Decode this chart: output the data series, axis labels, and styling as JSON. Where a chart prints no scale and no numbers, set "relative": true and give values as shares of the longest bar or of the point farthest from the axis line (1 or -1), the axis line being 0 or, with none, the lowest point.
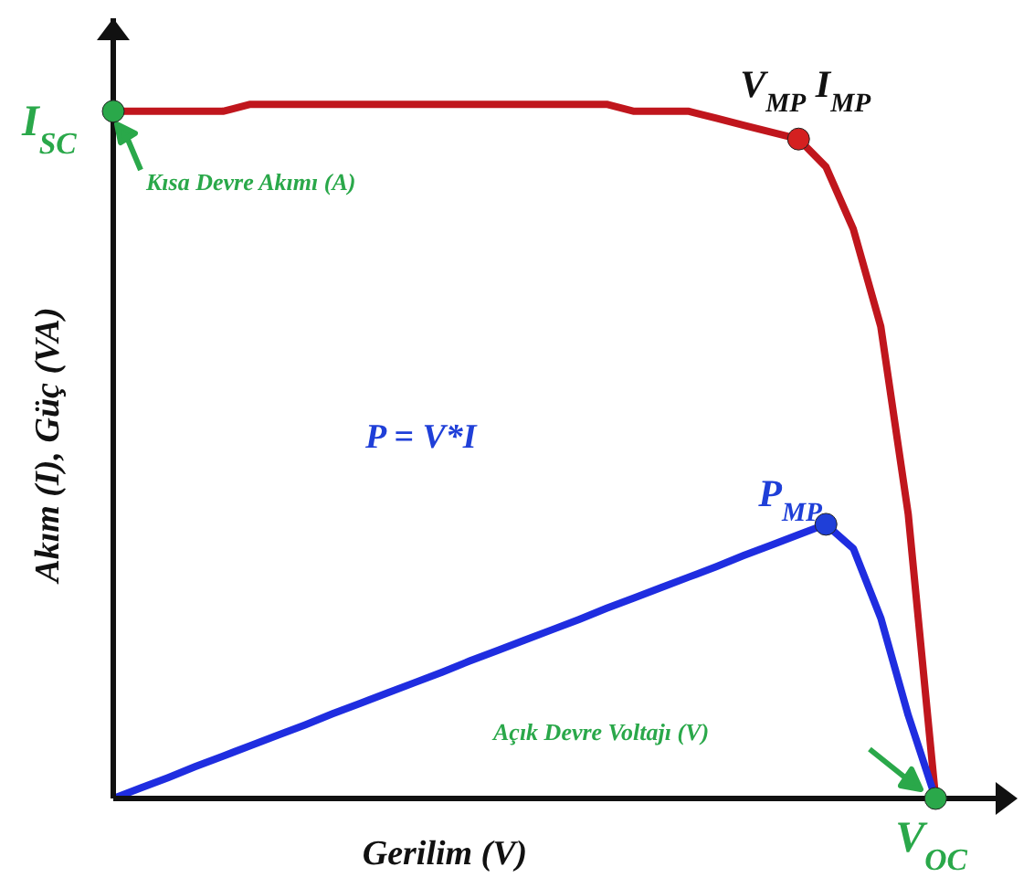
{
  "chart_data": {
    "type": "line",
    "relative": true,
    "xlabel": "Gerilim (V)",
    "ylabel": "Akım (I), Güç (VA)",
    "categories": [
      null,
      null,
      null,
      null,
      null,
      null,
      null,
      null,
      null,
      null,
      null,
      null,
      null,
      null,
      null,
      null,
      null,
      null,
      null,
      null,
      null,
      null,
      null,
      null,
      null,
      null,
      null,
      null,
      null,
      null,
      null
    ],
    "series": [
      {
        "color": "#c0161d",
        "values": [
          0.99,
          0.99,
          0.99,
          0.99,
          0.99,
          1,
          1,
          1,
          1,
          1,
          1,
          1,
          1,
          1,
          1,
          1,
          1,
          1,
          1,
          0.99,
          0.99,
          0.99,
          0.98,
          0.97,
          0.96,
          0.95,
          0.91,
          0.82,
          0.68,
          0.41,
          0
        ]
      },
      {
        "color": "#1f2de0",
        "values": [
          0,
          0.015,
          0.03,
          0.046,
          0.061,
          0.076,
          0.091,
          0.106,
          0.122,
          0.137,
          0.152,
          0.167,
          0.182,
          0.198,
          0.213,
          0.228,
          0.243,
          0.258,
          0.274,
          0.289,
          0.304,
          0.319,
          0.334,
          0.35,
          0.365,
          0.38,
          0.395,
          0.36,
          0.26,
          0.12,
          0
        ]
      }
    ],
    "annotations": [
      "I$_{SC}$",
      "Kısa Devre Akımı (A)",
      "V$_{MP}$ I$_{MP}$",
      "P$_{MP}$",
      "P = V*I",
      "V$_{OC}$",
      "Açık Devre Voltajı (V)"
    ]
  }
}
